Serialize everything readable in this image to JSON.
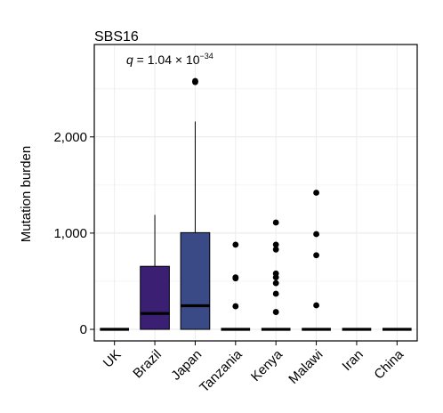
{
  "chart_data": {
    "type": "box",
    "title": "SBS16",
    "ylabel": "Mutation burden",
    "xlabel": "",
    "ylim": [
      -120,
      2960
    ],
    "yticks": [
      0,
      1000,
      2000
    ],
    "ytick_labels": [
      "0",
      "1,000",
      "2,000"
    ],
    "grid": true,
    "annotation": {
      "prefix": "q",
      "text": " = 1.04 × 10",
      "exponent": "−34"
    },
    "categories": [
      "UK",
      "Brazil",
      "Japan",
      "Tanzania",
      "Kenya",
      "Malawi",
      "Iran",
      "China"
    ],
    "boxes": [
      {
        "name": "UK",
        "q1": 0,
        "median": 0,
        "q3": 0,
        "whisker_low": 0,
        "whisker_high": 0,
        "outliers": [],
        "fill": "#000000"
      },
      {
        "name": "Brazil",
        "q1": 0,
        "median": 165,
        "q3": 655,
        "whisker_low": 0,
        "whisker_high": 1190,
        "outliers": [],
        "fill": "#3a1f73"
      },
      {
        "name": "Japan",
        "q1": 0,
        "median": 245,
        "q3": 1005,
        "whisker_low": 0,
        "whisker_high": 2160,
        "outliers": [
          2570,
          2580
        ],
        "fill": "#3a4a86"
      },
      {
        "name": "Tanzania",
        "q1": 0,
        "median": 0,
        "q3": 0,
        "whisker_low": 0,
        "whisker_high": 0,
        "outliers": [
          880,
          540,
          530,
          240
        ],
        "fill": "#000000"
      },
      {
        "name": "Kenya",
        "q1": 0,
        "median": 0,
        "q3": 0,
        "whisker_low": 0,
        "whisker_high": 0,
        "outliers": [
          1110,
          880,
          830,
          580,
          540,
          480,
          370,
          180
        ],
        "fill": "#000000"
      },
      {
        "name": "Malawi",
        "q1": 0,
        "median": 0,
        "q3": 0,
        "whisker_low": 0,
        "whisker_high": 0,
        "outliers": [
          1420,
          990,
          770,
          250
        ],
        "fill": "#000000"
      },
      {
        "name": "Iran",
        "q1": 0,
        "median": 0,
        "q3": 0,
        "whisker_low": 0,
        "whisker_high": 0,
        "outliers": [],
        "fill": "#000000"
      },
      {
        "name": "China",
        "q1": 0,
        "median": 0,
        "q3": 0,
        "whisker_low": 0,
        "whisker_high": 0,
        "outliers": [],
        "fill": "#000000"
      }
    ]
  }
}
